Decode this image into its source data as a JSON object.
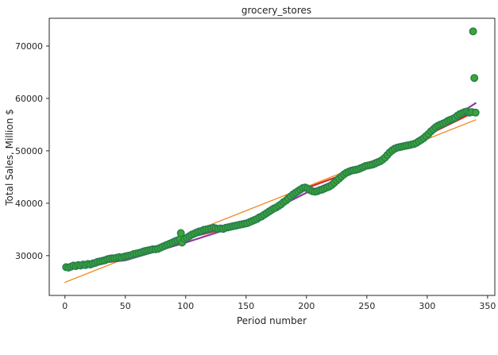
{
  "chart_data": {
    "type": "scatter",
    "title": "grocery_stores",
    "xlabel": "Period number",
    "ylabel": "Total Sales, Million $",
    "xlim": [
      -13,
      356
    ],
    "ylim": [
      22400,
      75300
    ],
    "xticks": [
      0,
      50,
      100,
      150,
      200,
      250,
      300,
      350
    ],
    "yticks": [
      30000,
      40000,
      50000,
      60000,
      70000
    ],
    "grid": false,
    "legend": "none",
    "colors": {
      "scatter_outline": "#2a7f4f",
      "scatter_fill": "#3aa833",
      "linear_fit": "#f28e2b",
      "quadratic_fit": "#8e3a9e",
      "smooth_fit": "#d62728"
    },
    "scatter": {
      "name": "observed",
      "points": [
        [
          1,
          27800
        ],
        [
          3,
          27700
        ],
        [
          5,
          27900
        ],
        [
          7,
          28100
        ],
        [
          9,
          28000
        ],
        [
          11,
          28200
        ],
        [
          13,
          28100
        ],
        [
          15,
          28300
        ],
        [
          17,
          28200
        ],
        [
          19,
          28400
        ],
        [
          21,
          28300
        ],
        [
          23,
          28500
        ],
        [
          25,
          28600
        ],
        [
          27,
          28800
        ],
        [
          29,
          28900
        ],
        [
          31,
          29000
        ],
        [
          33,
          29100
        ],
        [
          35,
          29300
        ],
        [
          37,
          29400
        ],
        [
          39,
          29500
        ],
        [
          41,
          29500
        ],
        [
          43,
          29600
        ],
        [
          45,
          29700
        ],
        [
          47,
          29600
        ],
        [
          49,
          29800
        ],
        [
          51,
          29900
        ],
        [
          53,
          30000
        ],
        [
          55,
          30100
        ],
        [
          57,
          30300
        ],
        [
          59,
          30400
        ],
        [
          61,
          30500
        ],
        [
          63,
          30600
        ],
        [
          65,
          30800
        ],
        [
          67,
          30900
        ],
        [
          69,
          31000
        ],
        [
          71,
          31100
        ],
        [
          73,
          31200
        ],
        [
          75,
          31200
        ],
        [
          77,
          31300
        ],
        [
          79,
          31500
        ],
        [
          81,
          31700
        ],
        [
          83,
          31900
        ],
        [
          85,
          32100
        ],
        [
          87,
          32300
        ],
        [
          89,
          32500
        ],
        [
          91,
          32700
        ],
        [
          93,
          32900
        ],
        [
          95,
          33100
        ],
        [
          96,
          34300
        ],
        [
          97,
          32500
        ],
        [
          99,
          33200
        ],
        [
          101,
          33400
        ],
        [
          103,
          33700
        ],
        [
          105,
          34000
        ],
        [
          107,
          34200
        ],
        [
          109,
          34400
        ],
        [
          111,
          34600
        ],
        [
          113,
          34700
        ],
        [
          115,
          34900
        ],
        [
          117,
          35000
        ],
        [
          119,
          35100
        ],
        [
          121,
          35200
        ],
        [
          123,
          35300
        ],
        [
          125,
          35200
        ],
        [
          127,
          35100
        ],
        [
          129,
          35200
        ],
        [
          131,
          35100
        ],
        [
          133,
          35300
        ],
        [
          135,
          35400
        ],
        [
          137,
          35500
        ],
        [
          139,
          35600
        ],
        [
          141,
          35700
        ],
        [
          143,
          35800
        ],
        [
          145,
          35900
        ],
        [
          147,
          36000
        ],
        [
          149,
          36100
        ],
        [
          151,
          36200
        ],
        [
          153,
          36400
        ],
        [
          155,
          36600
        ],
        [
          157,
          36800
        ],
        [
          159,
          37000
        ],
        [
          161,
          37300
        ],
        [
          163,
          37500
        ],
        [
          165,
          37800
        ],
        [
          167,
          38100
        ],
        [
          169,
          38400
        ],
        [
          171,
          38700
        ],
        [
          173,
          39000
        ],
        [
          175,
          39200
        ],
        [
          177,
          39500
        ],
        [
          179,
          39800
        ],
        [
          181,
          40200
        ],
        [
          183,
          40500
        ],
        [
          185,
          40900
        ],
        [
          187,
          41300
        ],
        [
          189,
          41700
        ],
        [
          191,
          42000
        ],
        [
          193,
          42300
        ],
        [
          195,
          42600
        ],
        [
          197,
          42900
        ],
        [
          199,
          43000
        ],
        [
          201,
          42800
        ],
        [
          203,
          42500
        ],
        [
          205,
          42300
        ],
        [
          207,
          42200
        ],
        [
          209,
          42300
        ],
        [
          211,
          42500
        ],
        [
          213,
          42600
        ],
        [
          215,
          42800
        ],
        [
          217,
          43000
        ],
        [
          219,
          43200
        ],
        [
          221,
          43500
        ],
        [
          223,
          43900
        ],
        [
          225,
          44300
        ],
        [
          227,
          44700
        ],
        [
          229,
          45100
        ],
        [
          231,
          45500
        ],
        [
          233,
          45800
        ],
        [
          235,
          46000
        ],
        [
          237,
          46200
        ],
        [
          239,
          46300
        ],
        [
          241,
          46400
        ],
        [
          243,
          46500
        ],
        [
          245,
          46700
        ],
        [
          247,
          46900
        ],
        [
          249,
          47100
        ],
        [
          251,
          47200
        ],
        [
          253,
          47300
        ],
        [
          255,
          47400
        ],
        [
          257,
          47600
        ],
        [
          259,
          47800
        ],
        [
          261,
          48000
        ],
        [
          263,
          48300
        ],
        [
          265,
          48700
        ],
        [
          267,
          49200
        ],
        [
          269,
          49700
        ],
        [
          271,
          50100
        ],
        [
          273,
          50400
        ],
        [
          275,
          50600
        ],
        [
          277,
          50700
        ],
        [
          279,
          50800
        ],
        [
          281,
          50900
        ],
        [
          283,
          51000
        ],
        [
          285,
          51100
        ],
        [
          287,
          51200
        ],
        [
          289,
          51300
        ],
        [
          291,
          51500
        ],
        [
          293,
          51800
        ],
        [
          295,
          52100
        ],
        [
          297,
          52400
        ],
        [
          299,
          52800
        ],
        [
          301,
          53200
        ],
        [
          303,
          53700
        ],
        [
          305,
          54100
        ],
        [
          307,
          54500
        ],
        [
          309,
          54800
        ],
        [
          311,
          55000
        ],
        [
          313,
          55200
        ],
        [
          315,
          55400
        ],
        [
          317,
          55700
        ],
        [
          319,
          55900
        ],
        [
          321,
          56100
        ],
        [
          323,
          56300
        ],
        [
          325,
          56700
        ],
        [
          327,
          57000
        ],
        [
          329,
          57200
        ],
        [
          331,
          57400
        ],
        [
          333,
          57500
        ],
        [
          335,
          57300
        ],
        [
          337,
          57400
        ],
        [
          338,
          72800
        ],
        [
          339,
          63900
        ],
        [
          340,
          57300
        ]
      ]
    },
    "lines": [
      {
        "key": "linear_fit",
        "points": [
          [
            0,
            24900
          ],
          [
            340,
            55900
          ]
        ]
      },
      {
        "key": "quadratic_fit",
        "points": [
          [
            0,
            27900
          ],
          [
            50,
            29100
          ],
          [
            100,
            32500
          ],
          [
            150,
            36200
          ],
          [
            200,
            42000
          ],
          [
            250,
            46900
          ],
          [
            300,
            53100
          ],
          [
            340,
            59100
          ]
        ]
      },
      {
        "key": "smooth_fit",
        "points": [
          [
            0,
            27800
          ],
          [
            50,
            29800
          ],
          [
            100,
            33300
          ],
          [
            150,
            36100
          ],
          [
            200,
            42900
          ],
          [
            250,
            47100
          ],
          [
            300,
            53000
          ],
          [
            340,
            57500
          ]
        ]
      }
    ]
  }
}
